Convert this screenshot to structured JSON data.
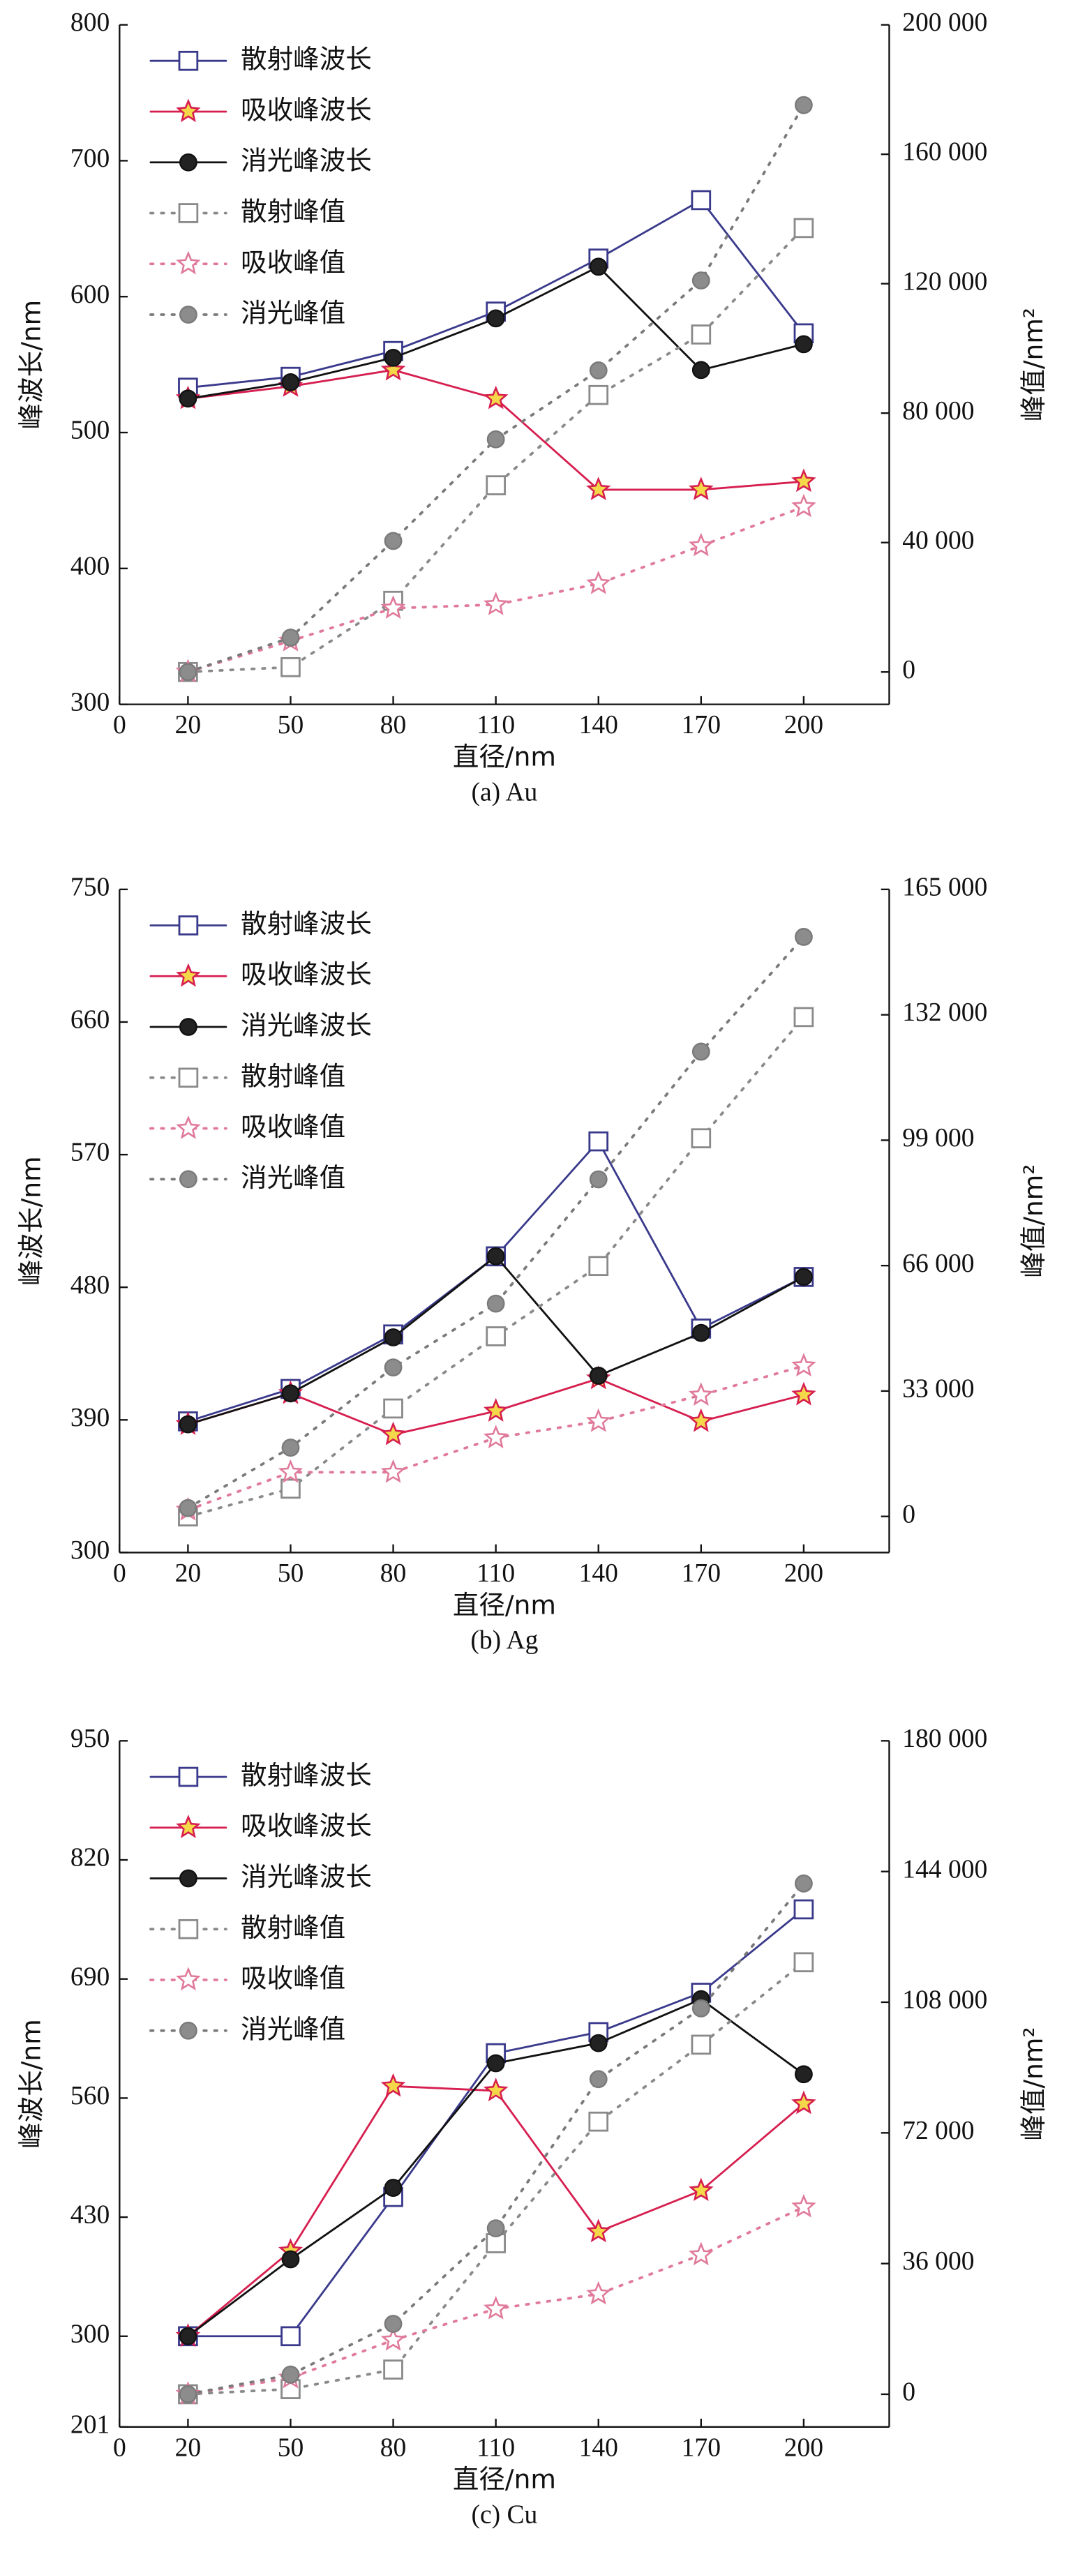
{
  "chart_data": [
    {
      "type": "line",
      "caption": "(a) Au",
      "xlabel": "直径/nm",
      "ylabel": "峰波长/nm",
      "y2label": "峰值/nm²",
      "x": [
        20,
        50,
        80,
        110,
        140,
        170,
        200
      ],
      "xlim": [
        0,
        225
      ],
      "xticks": [
        0,
        20,
        50,
        80,
        110,
        140,
        170,
        200
      ],
      "ylim": [
        300,
        800
      ],
      "yticks": [
        300,
        400,
        500,
        600,
        700,
        800
      ],
      "y2lim": [
        -10000,
        200000
      ],
      "y2ticks": [
        0,
        {
          "value": 40000,
          "label": "40 000"
        },
        {
          "value": 80000,
          "label": "80 000"
        },
        {
          "value": 120000,
          "label": "120 000"
        },
        {
          "value": 160000,
          "label": "160 000"
        },
        {
          "value": 200000,
          "label": "200 000"
        }
      ],
      "series": [
        {
          "name": "散射峰波长",
          "color": "#3a3a8c",
          "marker": "square",
          "line": "solid",
          "values": [
            533,
            541,
            560,
            589,
            628,
            671,
            573
          ]
        },
        {
          "name": "吸收峰波长",
          "color": "#d61f4f",
          "marker": "star",
          "line": "solid",
          "values": [
            525,
            534,
            546,
            525,
            458,
            458,
            464
          ]
        },
        {
          "name": "消光峰波长",
          "color": "#111111",
          "marker": "circle",
          "line": "solid",
          "values": [
            525,
            537,
            555,
            584,
            622,
            546,
            565
          ]
        },
        {
          "name": "散射峰值",
          "color": "#8a8a8a",
          "marker": "square",
          "line": "dotted",
          "axis": "y2",
          "values": [
            0,
            1500,
            22000,
            57700,
            85600,
            104300,
            137200
          ]
        },
        {
          "name": "吸收峰值",
          "color": "#e07a9a",
          "marker": "star",
          "line": "dotted",
          "axis": "y2",
          "values": [
            0,
            9600,
            19700,
            20800,
            27300,
            39000,
            51100
          ]
        },
        {
          "name": "消光峰值",
          "color": "#7a7a7a",
          "marker": "circle",
          "line": "dotted",
          "axis": "y2",
          "values": [
            0,
            10600,
            40500,
            71900,
            93200,
            121000,
            175200
          ]
        }
      ]
    },
    {
      "type": "line",
      "caption": "(b) Ag",
      "xlabel": "直径/nm",
      "ylabel": "峰波长/nm",
      "y2label": "峰值/nm²",
      "x": [
        20,
        50,
        80,
        110,
        140,
        170,
        200
      ],
      "xlim": [
        0,
        225
      ],
      "xticks": [
        0,
        20,
        50,
        80,
        110,
        140,
        170,
        200
      ],
      "ylim": [
        300,
        750
      ],
      "yticks": [
        300,
        390,
        480,
        570,
        660,
        750
      ],
      "y2lim": [
        -9500,
        165000
      ],
      "y2ticks": [
        0,
        {
          "value": 33000,
          "label": "33 000"
        },
        {
          "value": 66000,
          "label": "66 000"
        },
        {
          "value": 99000,
          "label": "99 000"
        },
        {
          "value": 132000,
          "label": "132 000"
        },
        {
          "value": 165000,
          "label": "165 000"
        }
      ],
      "series": [
        {
          "name": "散射峰波长",
          "color": "#3a3a8c",
          "marker": "square",
          "line": "solid",
          "values": [
            389,
            411,
            448,
            501,
            579,
            452,
            487
          ]
        },
        {
          "name": "吸收峰波长",
          "color": "#d61f4f",
          "marker": "star",
          "line": "solid",
          "values": [
            387,
            408,
            380,
            396,
            418,
            389,
            407
          ]
        },
        {
          "name": "消光峰波长",
          "color": "#111111",
          "marker": "circle",
          "line": "solid",
          "values": [
            387,
            408,
            446,
            501,
            420,
            449,
            487
          ]
        },
        {
          "name": "散射峰值",
          "color": "#8a8a8a",
          "marker": "square",
          "line": "dotted",
          "axis": "y2",
          "values": [
            0,
            7300,
            28400,
            47400,
            65900,
            99500,
            131400
          ]
        },
        {
          "name": "吸收峰值",
          "color": "#e07a9a",
          "marker": "star",
          "line": "dotted",
          "axis": "y2",
          "values": [
            1700,
            11600,
            11600,
            20700,
            25000,
            31900,
            39600
          ]
        },
        {
          "name": "消光峰值",
          "color": "#7a7a7a",
          "marker": "circle",
          "line": "dotted",
          "axis": "y2",
          "values": [
            2200,
            18100,
            39200,
            56000,
            88700,
            122300,
            152500
          ]
        }
      ]
    },
    {
      "type": "line",
      "caption": "(c) Cu",
      "xlabel": "直径/nm",
      "ylabel": "峰波长/nm",
      "y2label": "峰值/nm²",
      "x": [
        20,
        50,
        80,
        110,
        140,
        170,
        200
      ],
      "xlim": [
        0,
        225
      ],
      "xticks": [
        0,
        20,
        50,
        80,
        110,
        140,
        170,
        200
      ],
      "ylim": [
        201,
        950
      ],
      "yticks": [
        201,
        300,
        430,
        560,
        690,
        820,
        950
      ],
      "y2lim": [
        -9000,
        180000
      ],
      "y2ticks": [
        0,
        {
          "value": 36000,
          "label": "36 000"
        },
        {
          "value": 72000,
          "label": "72 000"
        },
        {
          "value": 108000,
          "label": "108 000"
        },
        {
          "value": 144000,
          "label": "144 000"
        },
        {
          "value": 180000,
          "label": "180 000"
        }
      ],
      "series": [
        {
          "name": "散射峰波长",
          "color": "#3a3a8c",
          "marker": "square",
          "line": "solid",
          "values": [
            300,
            300,
            452,
            609,
            632,
            675,
            766
          ]
        },
        {
          "name": "吸收峰波长",
          "color": "#d61f4f",
          "marker": "star",
          "line": "solid",
          "values": [
            300,
            393,
            573,
            568,
            414,
            459,
            554
          ]
        },
        {
          "name": "消光峰波长",
          "color": "#111111",
          "marker": "circle",
          "line": "solid",
          "values": [
            300,
            384,
            462,
            598,
            620,
            668,
            586
          ]
        },
        {
          "name": "散射峰值",
          "color": "#8a8a8a",
          "marker": "square",
          "line": "dotted",
          "axis": "y2",
          "values": [
            0,
            1400,
            6800,
            41600,
            75100,
            96300,
            119000
          ]
        },
        {
          "name": "吸收峰值",
          "color": "#e07a9a",
          "marker": "star",
          "line": "dotted",
          "axis": "y2",
          "values": [
            0,
            4500,
            14900,
            23500,
            27600,
            38400,
            51600
          ]
        },
        {
          "name": "消光峰值",
          "color": "#7a7a7a",
          "marker": "circle",
          "line": "dotted",
          "axis": "y2",
          "values": [
            0,
            5400,
            19400,
            45700,
            86800,
            106300,
            140700
          ]
        }
      ]
    }
  ]
}
